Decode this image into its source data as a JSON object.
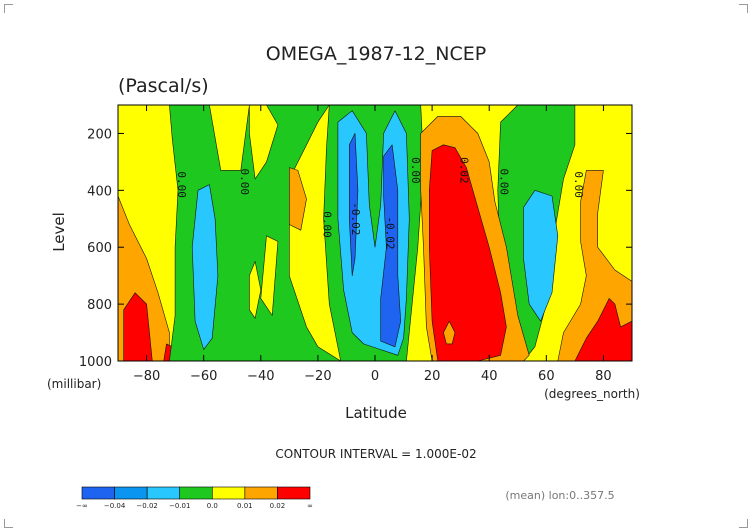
{
  "chart_data": {
    "type": "contour",
    "title": "OMEGA_1987-12_NCEP",
    "units": "(Pascal/s)",
    "xlabel": "Latitude",
    "ylabel": "Level",
    "x_unit_label": "(degrees_north)",
    "y_unit_label": "(millibar)",
    "xlim": [
      -90,
      90
    ],
    "ylim": [
      1000,
      100
    ],
    "xticks": [
      -80,
      -60,
      -40,
      -20,
      0,
      20,
      40,
      60,
      80
    ],
    "yticks": [
      1000,
      800,
      600,
      400,
      200
    ],
    "contour_interval_text": "CONTOUR INTERVAL = 1.000E-02",
    "footnote": "(mean) lon:0..357.5",
    "contour_labels": [
      {
        "text": "0.00",
        "lat": -69,
        "level": 380
      },
      {
        "text": "0.00",
        "lat": -47,
        "level": 370
      },
      {
        "text": "0.00",
        "lat": -18,
        "level": 520
      },
      {
        "text": "-0.02",
        "lat": -8,
        "level": 500
      },
      {
        "text": "-0.02",
        "lat": 4,
        "level": 550
      },
      {
        "text": "0.00",
        "lat": 13,
        "level": 330
      },
      {
        "text": "0.02",
        "lat": 30,
        "level": 330
      },
      {
        "text": "0.00",
        "lat": 44,
        "level": 370
      },
      {
        "text": "0.00",
        "lat": 70,
        "level": 380
      }
    ],
    "colorbar": {
      "labels": [
        "-∞",
        "-0.04",
        "-0.02",
        "-0.01",
        "0.0",
        "0.01",
        "0.02",
        "∞"
      ],
      "colors": [
        "#1e64f0",
        "#0a96f0",
        "#28c8ff",
        "#1ec81e",
        "#ffff00",
        "#ffa500",
        "#ff0000"
      ]
    },
    "regions_note": "filled contour bands by latitude; colors indicate omega range",
    "bands": [
      {
        "color": "#ffff00",
        "polygon": [
          [
            -90,
            100
          ],
          [
            90,
            100
          ],
          [
            90,
            1000
          ],
          [
            -90,
            1000
          ]
        ]
      },
      {
        "color": "#ffa500",
        "polygon": [
          [
            -90,
            420
          ],
          [
            -86,
            520
          ],
          [
            -80,
            640
          ],
          [
            -76,
            760
          ],
          [
            -72,
            900
          ],
          [
            -72,
            1000
          ],
          [
            -90,
            1000
          ]
        ]
      },
      {
        "color": "#ff0000",
        "polygon": [
          [
            -88,
            1000
          ],
          [
            -88,
            820
          ],
          [
            -84,
            760
          ],
          [
            -80,
            800
          ],
          [
            -78,
            1000
          ]
        ]
      },
      {
        "color": "#ff0000",
        "polygon": [
          [
            -74,
            1000
          ],
          [
            -73,
            940
          ],
          [
            -71,
            950
          ],
          [
            -70,
            1000
          ]
        ]
      },
      {
        "color": "#1ec81e",
        "polygon": [
          [
            -72,
            100
          ],
          [
            -58,
            100
          ],
          [
            -54,
            330
          ],
          [
            -47,
            330
          ],
          [
            -44,
            100
          ],
          [
            -16,
            100
          ],
          [
            -20,
            160
          ],
          [
            -26,
            280
          ],
          [
            -30,
            360
          ],
          [
            -30,
            700
          ],
          [
            -24,
            880
          ],
          [
            -20,
            950
          ],
          [
            -12,
            1000
          ],
          [
            -72,
            1000
          ],
          [
            -70,
            840
          ],
          [
            -70,
            600
          ],
          [
            -69,
            400
          ],
          [
            -71,
            220
          ]
        ]
      },
      {
        "color": "#ffff00",
        "polygon": [
          [
            -44,
            100
          ],
          [
            -38,
            100
          ],
          [
            -34,
            170
          ],
          [
            -38,
            300
          ],
          [
            -42,
            360
          ],
          [
            -44,
            200
          ]
        ]
      },
      {
        "color": "#ffa500",
        "polygon": [
          [
            -30,
            320
          ],
          [
            -27,
            330
          ],
          [
            -24,
            430
          ],
          [
            -26,
            540
          ],
          [
            -30,
            520
          ]
        ]
      },
      {
        "color": "#ffff00",
        "polygon": [
          [
            -38,
            560
          ],
          [
            -34,
            580
          ],
          [
            -36,
            840
          ],
          [
            -40,
            780
          ]
        ]
      },
      {
        "color": "#28c8ff",
        "polygon": [
          [
            -62,
            400
          ],
          [
            -58,
            380
          ],
          [
            -56,
            500
          ],
          [
            -55,
            700
          ],
          [
            -57,
            920
          ],
          [
            -60,
            960
          ],
          [
            -63,
            860
          ],
          [
            -64,
            600
          ]
        ]
      },
      {
        "color": "#ffff00",
        "polygon": [
          [
            -44,
            700
          ],
          [
            -42,
            650
          ],
          [
            -40,
            750
          ],
          [
            -42,
            850
          ],
          [
            -44,
            820
          ]
        ]
      },
      {
        "color": "#1ec81e",
        "polygon": [
          [
            -16,
            100
          ],
          [
            16,
            100
          ],
          [
            17,
            300
          ],
          [
            15,
            600
          ],
          [
            13,
            800
          ],
          [
            11,
            1000
          ],
          [
            -12,
            1000
          ],
          [
            -16,
            800
          ],
          [
            -18,
            500
          ],
          [
            -17,
            250
          ]
        ]
      },
      {
        "color": "#28c8ff",
        "polygon": [
          [
            -13,
            160
          ],
          [
            -8,
            120
          ],
          [
            -3,
            200
          ],
          [
            -2,
            450
          ],
          [
            0,
            600
          ],
          [
            2,
            450
          ],
          [
            3,
            200
          ],
          [
            7,
            120
          ],
          [
            11,
            200
          ],
          [
            12,
            500
          ],
          [
            11,
            780
          ],
          [
            10,
            920
          ],
          [
            8,
            980
          ],
          [
            2,
            960
          ],
          [
            -4,
            940
          ],
          [
            -8,
            900
          ],
          [
            -11,
            750
          ],
          [
            -13,
            500
          ]
        ]
      },
      {
        "color": "#1e64f0",
        "polygon": [
          [
            -9,
            240
          ],
          [
            -7,
            200
          ],
          [
            -6,
            400
          ],
          [
            -7,
            640
          ],
          [
            -8,
            700
          ],
          [
            -9,
            500
          ]
        ]
      },
      {
        "color": "#1e64f0",
        "polygon": [
          [
            3,
            280
          ],
          [
            6,
            240
          ],
          [
            8,
            400
          ],
          [
            8,
            700
          ],
          [
            9,
            860
          ],
          [
            7,
            950
          ],
          [
            2,
            930
          ],
          [
            2,
            780
          ],
          [
            4,
            600
          ],
          [
            3,
            420
          ]
        ]
      },
      {
        "color": "#1ec81e",
        "polygon": [
          [
            44,
            160
          ],
          [
            50,
            100
          ],
          [
            70,
            100
          ],
          [
            70,
            240
          ],
          [
            66,
            360
          ],
          [
            62,
            600
          ],
          [
            60,
            800
          ],
          [
            56,
            950
          ],
          [
            52,
            1000
          ],
          [
            46,
            1000
          ],
          [
            44,
            700
          ],
          [
            43,
            400
          ]
        ]
      },
      {
        "color": "#28c8ff",
        "polygon": [
          [
            52,
            460
          ],
          [
            56,
            400
          ],
          [
            62,
            420
          ],
          [
            64,
            560
          ],
          [
            62,
            760
          ],
          [
            58,
            860
          ],
          [
            54,
            800
          ],
          [
            52,
            640
          ]
        ]
      },
      {
        "color": "#ffa500",
        "polygon": [
          [
            16,
            200
          ],
          [
            22,
            140
          ],
          [
            30,
            140
          ],
          [
            36,
            200
          ],
          [
            40,
            300
          ],
          [
            42,
            440
          ],
          [
            46,
            600
          ],
          [
            50,
            840
          ],
          [
            54,
            980
          ],
          [
            52,
            1000
          ],
          [
            40,
            1000
          ],
          [
            28,
            1000
          ],
          [
            20,
            1000
          ],
          [
            18,
            880
          ],
          [
            17,
            600
          ],
          [
            16,
            400
          ]
        ]
      },
      {
        "color": "#ff0000",
        "polygon": [
          [
            20,
            260
          ],
          [
            24,
            240
          ],
          [
            28,
            250
          ],
          [
            32,
            320
          ],
          [
            36,
            460
          ],
          [
            40,
            600
          ],
          [
            44,
            760
          ],
          [
            46,
            880
          ],
          [
            44,
            980
          ],
          [
            36,
            1000
          ],
          [
            22,
            1000
          ],
          [
            20,
            860
          ],
          [
            19,
            600
          ],
          [
            19,
            400
          ]
        ]
      },
      {
        "color": "#ffa500",
        "polygon": [
          [
            24,
            900
          ],
          [
            26,
            860
          ],
          [
            28,
            900
          ],
          [
            27,
            940
          ],
          [
            25,
            940
          ]
        ]
      },
      {
        "color": "#ffa500",
        "polygon": [
          [
            72,
            440
          ],
          [
            74,
            330
          ],
          [
            80,
            330
          ],
          [
            78,
            480
          ],
          [
            78,
            600
          ],
          [
            84,
            680
          ],
          [
            90,
            720
          ],
          [
            90,
            1000
          ],
          [
            64,
            1000
          ],
          [
            66,
            900
          ],
          [
            72,
            800
          ],
          [
            74,
            700
          ],
          [
            72,
            580
          ]
        ]
      },
      {
        "color": "#ff0000",
        "polygon": [
          [
            70,
            1000
          ],
          [
            74,
            920
          ],
          [
            78,
            860
          ],
          [
            82,
            780
          ],
          [
            84,
            800
          ],
          [
            86,
            880
          ],
          [
            90,
            860
          ],
          [
            90,
            1000
          ]
        ]
      }
    ]
  }
}
